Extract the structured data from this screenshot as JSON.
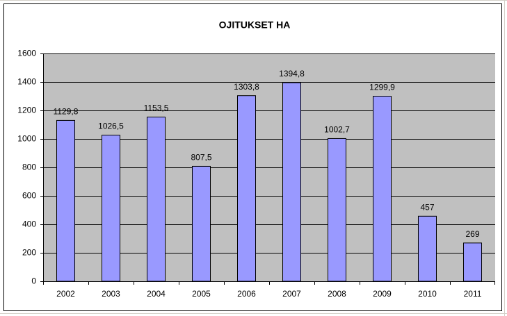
{
  "chart_data": {
    "type": "bar",
    "title": "OJITUKSET HA",
    "categories": [
      "2002",
      "2003",
      "2004",
      "2005",
      "2006",
      "2007",
      "2008",
      "2009",
      "2010",
      "2011"
    ],
    "values": [
      1129.8,
      1026.5,
      1153.5,
      807.5,
      1303.8,
      1394.8,
      1002.7,
      1299.9,
      457,
      269
    ],
    "value_labels": [
      "1129,8",
      "1026,5",
      "1153,5",
      "807,5",
      "1303,8",
      "1394,8",
      "1002,7",
      "1299,9",
      "457",
      "269"
    ],
    "color": "#9999ff",
    "ylim": [
      0,
      1600
    ],
    "yticks": [
      0,
      200,
      400,
      600,
      800,
      1000,
      1200,
      1400,
      1600
    ],
    "grid": true
  }
}
